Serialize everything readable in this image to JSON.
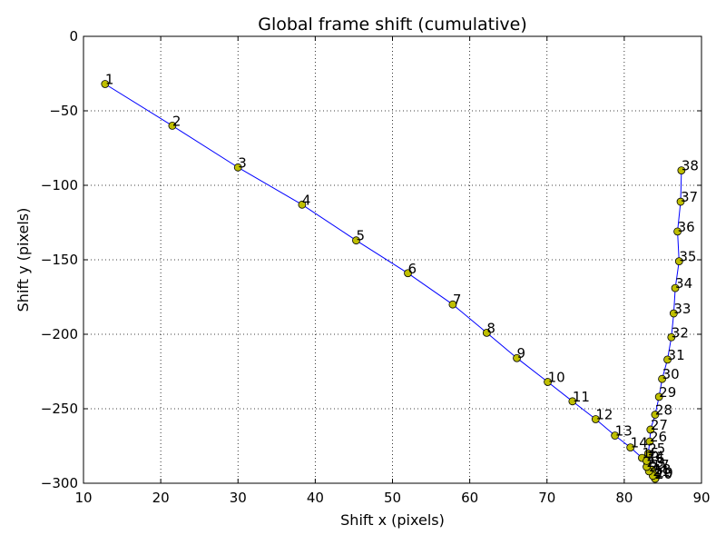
{
  "chart_data": {
    "type": "line",
    "title": "Global frame shift (cumulative)",
    "xlabel": "Shift x (pixels)",
    "ylabel": "Shift y (pixels)",
    "xlim": [
      10,
      90
    ],
    "ylim": [
      -300,
      0
    ],
    "xticks": [
      10,
      20,
      30,
      40,
      50,
      60,
      70,
      80,
      90
    ],
    "yticks": [
      0,
      -50,
      -100,
      -150,
      -200,
      -250,
      -300
    ],
    "xtick_labels": [
      "10",
      "20",
      "30",
      "40",
      "50",
      "60",
      "70",
      "80",
      "90"
    ],
    "ytick_labels": [
      "0",
      "−50",
      "−100",
      "−150",
      "−200",
      "−250",
      "−300"
    ],
    "grid": true,
    "line_color": "#0000ff",
    "marker_color": "#bfbf00",
    "series": [
      {
        "points": [
          {
            "label": "1",
            "x": 12.8,
            "y": -32
          },
          {
            "label": "2",
            "x": 21.5,
            "y": -60
          },
          {
            "label": "3",
            "x": 30.0,
            "y": -88
          },
          {
            "label": "4",
            "x": 38.3,
            "y": -113
          },
          {
            "label": "5",
            "x": 45.3,
            "y": -137
          },
          {
            "label": "6",
            "x": 52.0,
            "y": -159
          },
          {
            "label": "7",
            "x": 57.8,
            "y": -180
          },
          {
            "label": "8",
            "x": 62.2,
            "y": -199
          },
          {
            "label": "9",
            "x": 66.1,
            "y": -216
          },
          {
            "label": "10",
            "x": 70.1,
            "y": -232
          },
          {
            "label": "11",
            "x": 73.3,
            "y": -245
          },
          {
            "label": "12",
            "x": 76.3,
            "y": -257
          },
          {
            "label": "13",
            "x": 78.8,
            "y": -268
          },
          {
            "label": "14",
            "x": 80.8,
            "y": -276
          },
          {
            "label": "15",
            "x": 82.3,
            "y": -283
          },
          {
            "label": "16",
            "x": 83.0,
            "y": -287
          },
          {
            "label": "17",
            "x": 83.6,
            "y": -291
          },
          {
            "label": "18",
            "x": 83.8,
            "y": -294
          },
          {
            "label": "19",
            "x": 84.1,
            "y": -296
          },
          {
            "label": "20",
            "x": 84.0,
            "y": -297
          },
          {
            "label": "21",
            "x": 83.7,
            "y": -295
          },
          {
            "label": "22",
            "x": 83.2,
            "y": -292
          },
          {
            "label": "23",
            "x": 82.9,
            "y": -289
          },
          {
            "label": "24",
            "x": 82.9,
            "y": -285
          },
          {
            "label": "25",
            "x": 83.1,
            "y": -280
          },
          {
            "label": "26",
            "x": 83.3,
            "y": -272
          },
          {
            "label": "27",
            "x": 83.4,
            "y": -264
          },
          {
            "label": "28",
            "x": 84.0,
            "y": -254
          },
          {
            "label": "29",
            "x": 84.5,
            "y": -242
          },
          {
            "label": "30",
            "x": 84.9,
            "y": -230
          },
          {
            "label": "31",
            "x": 85.6,
            "y": -217
          },
          {
            "label": "32",
            "x": 86.1,
            "y": -202
          },
          {
            "label": "33",
            "x": 86.4,
            "y": -186
          },
          {
            "label": "34",
            "x": 86.6,
            "y": -169
          },
          {
            "label": "35",
            "x": 87.1,
            "y": -151
          },
          {
            "label": "36",
            "x": 86.9,
            "y": -131
          },
          {
            "label": "37",
            "x": 87.3,
            "y": -111
          },
          {
            "label": "38",
            "x": 87.4,
            "y": -90
          }
        ]
      }
    ]
  }
}
